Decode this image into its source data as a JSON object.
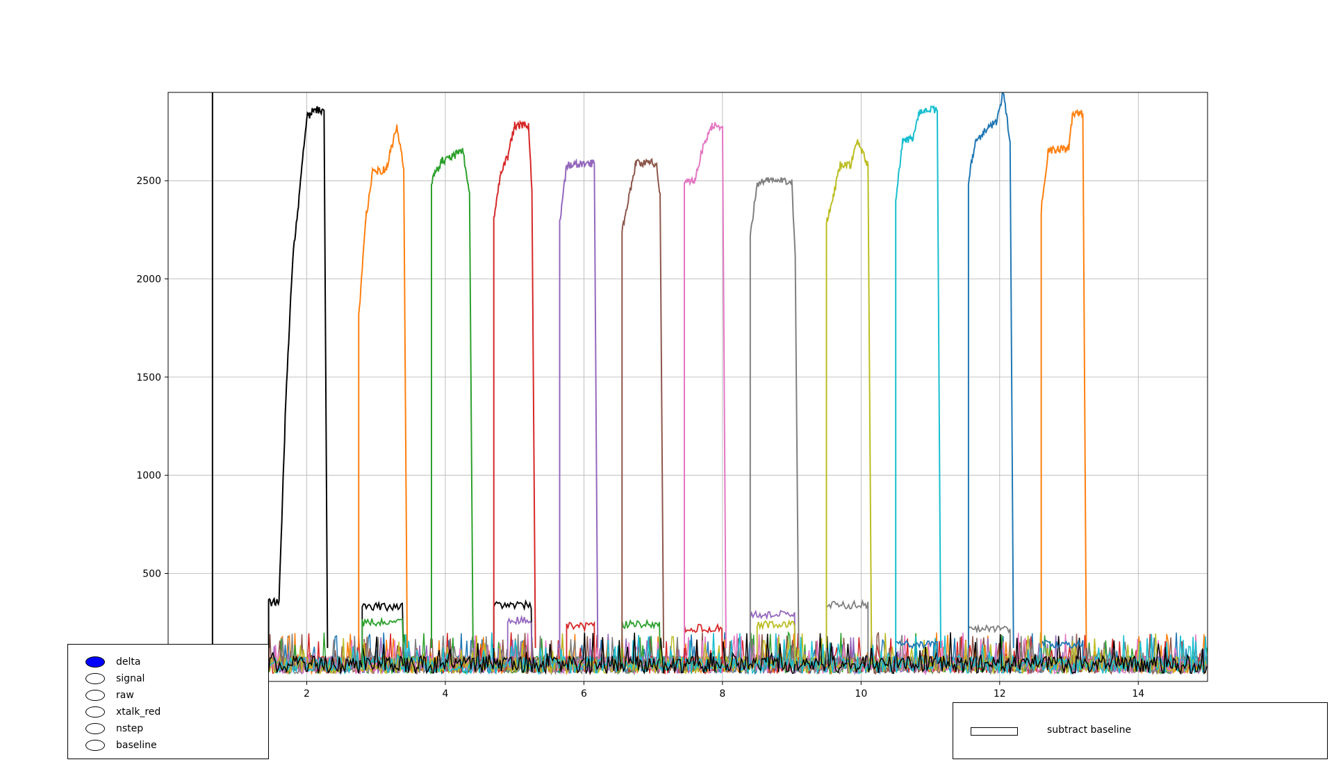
{
  "chart_data": {
    "type": "line",
    "title": "",
    "xlabel": "",
    "ylabel": "",
    "xlim": [
      0.0,
      15.0
    ],
    "ylim": [
      -50,
      2950
    ],
    "grid": true,
    "xticks": [
      2,
      4,
      6,
      8,
      10,
      12,
      14
    ],
    "yticks": [
      500,
      1000,
      1500,
      2000,
      2500
    ],
    "vertical_marker_x": 0.64,
    "series": [
      {
        "color": "#000000",
        "pulse": [
          1.45,
          2.25
        ],
        "plateau": [
          [
            1.45,
            350
          ],
          [
            1.6,
            360
          ],
          [
            1.7,
            1400
          ],
          [
            1.75,
            1750
          ],
          [
            1.8,
            2120
          ],
          [
            1.9,
            2450
          ],
          [
            2.0,
            2820
          ],
          [
            2.1,
            2860
          ],
          [
            2.25,
            2860
          ]
        ],
        "floor": 120
      },
      {
        "color": "#ff7f0e",
        "pulse": [
          2.75,
          3.4
        ],
        "plateau": [
          [
            2.75,
            1800
          ],
          [
            2.85,
            2300
          ],
          [
            2.95,
            2540
          ],
          [
            3.15,
            2560
          ],
          [
            3.3,
            2780
          ],
          [
            3.4,
            2560
          ]
        ],
        "floor": 120
      },
      {
        "color": "#2ca02c",
        "pulse": [
          3.8,
          4.35
        ],
        "plateau": [
          [
            3.8,
            2500
          ],
          [
            3.95,
            2600
          ],
          [
            4.1,
            2620
          ],
          [
            4.25,
            2660
          ],
          [
            4.35,
            2430
          ]
        ],
        "floor": 120
      },
      {
        "color": "#d62728",
        "pulse": [
          4.7,
          5.25
        ],
        "plateau": [
          [
            4.7,
            2300
          ],
          [
            4.8,
            2550
          ],
          [
            4.9,
            2620
          ],
          [
            5.0,
            2780
          ],
          [
            5.2,
            2780
          ],
          [
            5.25,
            2450
          ]
        ],
        "floor": 120
      },
      {
        "color": "#9467bd",
        "pulse": [
          5.65,
          6.15
        ],
        "plateau": [
          [
            5.65,
            2280
          ],
          [
            5.75,
            2580
          ],
          [
            6.15,
            2590
          ]
        ],
        "floor": 120
      },
      {
        "color": "#8c564b",
        "pulse": [
          6.55,
          7.1
        ],
        "plateau": [
          [
            6.55,
            2250
          ],
          [
            6.65,
            2420
          ],
          [
            6.75,
            2590
          ],
          [
            7.05,
            2590
          ],
          [
            7.1,
            2420
          ]
        ],
        "floor": 120
      },
      {
        "color": "#e377c2",
        "pulse": [
          7.45,
          8.0
        ],
        "plateau": [
          [
            7.45,
            2500
          ],
          [
            7.6,
            2500
          ],
          [
            7.7,
            2650
          ],
          [
            7.85,
            2780
          ],
          [
            8.0,
            2780
          ]
        ],
        "floor": 120
      },
      {
        "color": "#7f7f7f",
        "pulse": [
          8.4,
          9.05
        ],
        "plateau": [
          [
            8.4,
            2220
          ],
          [
            8.5,
            2480
          ],
          [
            8.6,
            2500
          ],
          [
            9.0,
            2500
          ],
          [
            9.05,
            2100
          ]
        ],
        "floor": 120
      },
      {
        "color": "#bcbd22",
        "pulse": [
          9.5,
          10.1
        ],
        "plateau": [
          [
            9.5,
            2280
          ],
          [
            9.6,
            2420
          ],
          [
            9.7,
            2580
          ],
          [
            9.85,
            2580
          ],
          [
            9.95,
            2700
          ],
          [
            10.1,
            2580
          ]
        ],
        "floor": 120
      },
      {
        "color": "#17becf",
        "pulse": [
          10.5,
          11.1
        ],
        "plateau": [
          [
            10.5,
            2400
          ],
          [
            10.6,
            2700
          ],
          [
            10.75,
            2720
          ],
          [
            10.85,
            2860
          ],
          [
            11.1,
            2860
          ]
        ],
        "floor": 120
      },
      {
        "color": "#1f77b4",
        "pulse": [
          11.55,
          12.15
        ],
        "plateau": [
          [
            11.55,
            2500
          ],
          [
            11.65,
            2700
          ],
          [
            11.8,
            2760
          ],
          [
            11.95,
            2800
          ],
          [
            12.05,
            2950
          ],
          [
            12.15,
            2700
          ]
        ],
        "floor": 120
      },
      {
        "color": "#ff7f0e",
        "pulse": [
          12.6,
          13.2
        ],
        "plateau": [
          [
            12.6,
            2350
          ],
          [
            12.7,
            2650
          ],
          [
            12.85,
            2660
          ],
          [
            13.0,
            2660
          ],
          [
            13.05,
            2840
          ],
          [
            13.2,
            2840
          ]
        ],
        "floor": 120
      }
    ],
    "crosstalk_steps": [
      {
        "color": "#000000",
        "x": [
          2.8,
          3.4
        ],
        "level": 330
      },
      {
        "color": "#2ca02c",
        "x": [
          2.8,
          3.4
        ],
        "level": 250
      },
      {
        "color": "#000000",
        "x": [
          4.7,
          5.25
        ],
        "level": 340
      },
      {
        "color": "#9467bd",
        "x": [
          4.9,
          5.25
        ],
        "level": 260
      },
      {
        "color": "#d62728",
        "x": [
          5.75,
          6.15
        ],
        "level": 230
      },
      {
        "color": "#2ca02c",
        "x": [
          6.55,
          7.1
        ],
        "level": 240
      },
      {
        "color": "#d62728",
        "x": [
          7.45,
          8.0
        ],
        "level": 220
      },
      {
        "color": "#9467bd",
        "x": [
          8.4,
          9.05
        ],
        "level": 290
      },
      {
        "color": "#bcbd22",
        "x": [
          8.5,
          9.05
        ],
        "level": 240
      },
      {
        "color": "#7f7f7f",
        "x": [
          9.5,
          10.1
        ],
        "level": 340
      },
      {
        "color": "#1f77b4",
        "x": [
          10.5,
          11.1
        ],
        "level": 140
      },
      {
        "color": "#7f7f7f",
        "x": [
          11.55,
          12.15
        ],
        "level": 220
      },
      {
        "color": "#1f77b4",
        "x": [
          12.6,
          13.2
        ],
        "level": 140
      }
    ],
    "noise_colors": [
      "#1f77b4",
      "#ff7f0e",
      "#2ca02c",
      "#d62728",
      "#9467bd",
      "#8c564b",
      "#e377c2",
      "#7f7f7f",
      "#bcbd22",
      "#17becf",
      "#000000"
    ]
  },
  "controls": {
    "radio_buttons": [
      {
        "label": "delta",
        "selected": true
      },
      {
        "label": "signal",
        "selected": false
      },
      {
        "label": "raw",
        "selected": false
      },
      {
        "label": "xtalk_red",
        "selected": false
      },
      {
        "label": "nstep",
        "selected": false
      },
      {
        "label": "baseline",
        "selected": false
      }
    ],
    "selected_color": "#0000ff",
    "checkbox": {
      "label": "subtract baseline",
      "checked": false
    }
  }
}
